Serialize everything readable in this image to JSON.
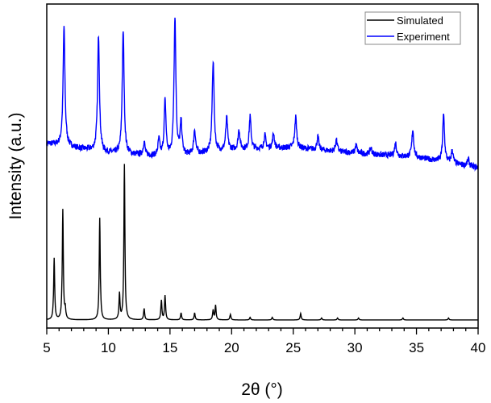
{
  "chart_data": {
    "type": "line",
    "title": "",
    "xlabel": "2θ (°)",
    "ylabel": "Intensity (a.u.)",
    "xlim": [
      5,
      40
    ],
    "ylim": [
      0,
      100
    ],
    "x_ticks": [
      "5",
      "10",
      "15",
      "20",
      "25",
      "30",
      "35",
      "40"
    ],
    "y_ticks_shown": false,
    "grid": false,
    "legend_position": "top-right",
    "series": [
      {
        "name": "Simulated",
        "color": "#000000",
        "baseline": [
          [
            5,
            2.5
          ],
          [
            40,
            2.5
          ]
        ],
        "peaks": [
          [
            5.6,
            19
          ],
          [
            6.3,
            34
          ],
          [
            6.5,
            3
          ],
          [
            9.3,
            31.5
          ],
          [
            10.9,
            8
          ],
          [
            11.3,
            48
          ],
          [
            12.9,
            3.5
          ],
          [
            14.3,
            6
          ],
          [
            14.6,
            7.5
          ],
          [
            15.9,
            2.2
          ],
          [
            17.0,
            2.2
          ],
          [
            18.5,
            3
          ],
          [
            18.7,
            4.5
          ],
          [
            19.9,
            1.7
          ],
          [
            21.5,
            0.8
          ],
          [
            23.3,
            0.8
          ],
          [
            25.6,
            2
          ],
          [
            27.3,
            0.6
          ],
          [
            28.6,
            0.6
          ],
          [
            30.3,
            0.6
          ],
          [
            33.9,
            0.6
          ],
          [
            37.6,
            0.6
          ]
        ]
      },
      {
        "name": "Experiment",
        "color": "#0000ff",
        "baseline": [
          [
            5,
            57
          ],
          [
            10,
            54
          ],
          [
            15,
            52.7
          ],
          [
            20,
            55
          ],
          [
            25,
            55.7
          ],
          [
            30,
            54
          ],
          [
            35,
            52.7
          ],
          [
            40,
            49.5
          ]
        ],
        "peaks": [
          [
            6.4,
            37
          ],
          [
            9.2,
            36
          ],
          [
            11.2,
            38
          ],
          [
            12.9,
            4
          ],
          [
            14.1,
            5
          ],
          [
            14.6,
            17
          ],
          [
            15.4,
            43
          ],
          [
            15.9,
            10
          ],
          [
            17.0,
            7.5
          ],
          [
            18.5,
            28
          ],
          [
            19.6,
            10
          ],
          [
            20.6,
            6
          ],
          [
            21.5,
            10
          ],
          [
            22.7,
            4
          ],
          [
            23.4,
            4.5
          ],
          [
            25.2,
            9.5
          ],
          [
            27.0,
            4
          ],
          [
            28.5,
            3.5
          ],
          [
            30.1,
            2.5
          ],
          [
            31.3,
            2
          ],
          [
            33.3,
            4
          ],
          [
            34.7,
            8.5
          ],
          [
            37.2,
            14.5
          ],
          [
            37.9,
            4
          ],
          [
            39.2,
            2
          ]
        ]
      }
    ]
  }
}
